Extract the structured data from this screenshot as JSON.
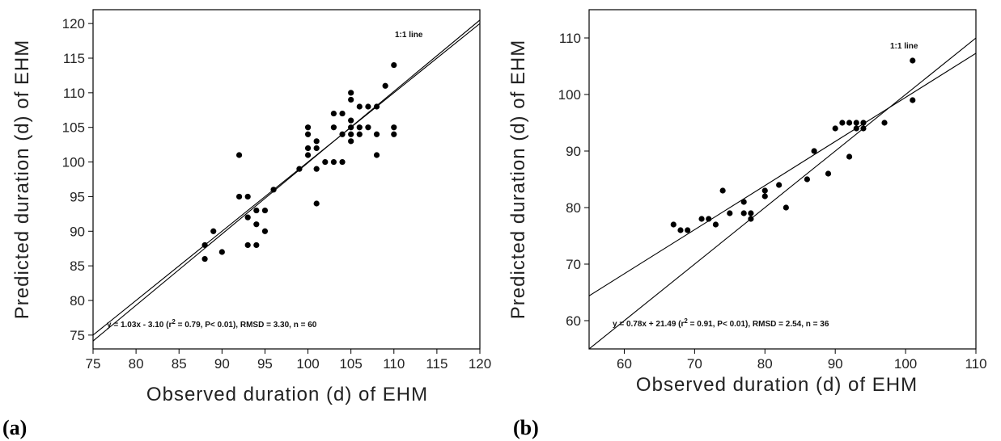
{
  "chart_data": [
    {
      "type": "scatter",
      "panel_label": "(a)",
      "xlabel": "Observed duration (d) of EHM",
      "ylabel": "Predicted duration (d) of EHM",
      "xlim": [
        75,
        120
      ],
      "ylim": [
        73,
        122
      ],
      "xticks": [
        75,
        80,
        85,
        90,
        95,
        100,
        105,
        110,
        115,
        120
      ],
      "yticks": [
        75,
        80,
        85,
        90,
        95,
        100,
        105,
        110,
        115,
        120
      ],
      "equation_text": "y = 1.03x - 3.10 (r",
      "equation_sup": "2",
      "equation_rest": " = 0.79, P< 0.01), RMSD = 3.30, n = 60",
      "one_to_one_label": "1:1 line",
      "lines": [
        {
          "kind": "fit",
          "slope": 1.03,
          "intercept": -3.1
        },
        {
          "kind": "one_to_one",
          "slope": 1,
          "intercept": 0
        }
      ],
      "points": [
        {
          "x": 88,
          "y": 88
        },
        {
          "x": 88,
          "y": 86
        },
        {
          "x": 89,
          "y": 90
        },
        {
          "x": 90,
          "y": 87
        },
        {
          "x": 92,
          "y": 101
        },
        {
          "x": 92,
          "y": 95
        },
        {
          "x": 93,
          "y": 95
        },
        {
          "x": 93,
          "y": 92
        },
        {
          "x": 93,
          "y": 88
        },
        {
          "x": 94,
          "y": 88
        },
        {
          "x": 94,
          "y": 93
        },
        {
          "x": 94,
          "y": 91
        },
        {
          "x": 95,
          "y": 93
        },
        {
          "x": 95,
          "y": 90
        },
        {
          "x": 96,
          "y": 96
        },
        {
          "x": 99,
          "y": 99
        },
        {
          "x": 100,
          "y": 105
        },
        {
          "x": 100,
          "y": 104
        },
        {
          "x": 100,
          "y": 102
        },
        {
          "x": 100,
          "y": 101
        },
        {
          "x": 101,
          "y": 103
        },
        {
          "x": 101,
          "y": 102
        },
        {
          "x": 101,
          "y": 99
        },
        {
          "x": 101,
          "y": 94
        },
        {
          "x": 102,
          "y": 100
        },
        {
          "x": 103,
          "y": 107
        },
        {
          "x": 103,
          "y": 105
        },
        {
          "x": 103,
          "y": 100
        },
        {
          "x": 104,
          "y": 107
        },
        {
          "x": 104,
          "y": 104
        },
        {
          "x": 104,
          "y": 100
        },
        {
          "x": 105,
          "y": 110
        },
        {
          "x": 105,
          "y": 109
        },
        {
          "x": 105,
          "y": 106
        },
        {
          "x": 105,
          "y": 105
        },
        {
          "x": 105,
          "y": 104
        },
        {
          "x": 105,
          "y": 103
        },
        {
          "x": 106,
          "y": 108
        },
        {
          "x": 106,
          "y": 105
        },
        {
          "x": 106,
          "y": 104
        },
        {
          "x": 107,
          "y": 108
        },
        {
          "x": 107,
          "y": 105
        },
        {
          "x": 108,
          "y": 108
        },
        {
          "x": 108,
          "y": 104
        },
        {
          "x": 108,
          "y": 101
        },
        {
          "x": 109,
          "y": 111
        },
        {
          "x": 110,
          "y": 114
        },
        {
          "x": 110,
          "y": 105
        },
        {
          "x": 110,
          "y": 104
        }
      ]
    },
    {
      "type": "scatter",
      "panel_label": "(b)",
      "xlabel": "Observed duration (d) of EHM",
      "ylabel": "Predicted duration (d) of EHM",
      "xlim": [
        55,
        110
      ],
      "ylim": [
        55,
        115
      ],
      "xticks": [
        60,
        70,
        80,
        90,
        100,
        110
      ],
      "yticks": [
        60,
        70,
        80,
        90,
        100,
        110
      ],
      "equation_text": "y = 0.78x + 21.49 (r",
      "equation_sup": "2",
      "equation_rest": " = 0.91, P< 0.01), RMSD = 2.54, n = 36",
      "one_to_one_label": "1:1 line",
      "lines": [
        {
          "kind": "fit",
          "slope": 0.78,
          "intercept": 21.49
        },
        {
          "kind": "one_to_one",
          "slope": 1,
          "intercept": 0
        }
      ],
      "points": [
        {
          "x": 67,
          "y": 77
        },
        {
          "x": 68,
          "y": 76
        },
        {
          "x": 69,
          "y": 76
        },
        {
          "x": 71,
          "y": 78
        },
        {
          "x": 72,
          "y": 78
        },
        {
          "x": 73,
          "y": 77
        },
        {
          "x": 74,
          "y": 83
        },
        {
          "x": 75,
          "y": 79
        },
        {
          "x": 77,
          "y": 81
        },
        {
          "x": 77,
          "y": 79
        },
        {
          "x": 78,
          "y": 79
        },
        {
          "x": 78,
          "y": 78
        },
        {
          "x": 80,
          "y": 83
        },
        {
          "x": 80,
          "y": 82
        },
        {
          "x": 82,
          "y": 84
        },
        {
          "x": 83,
          "y": 80
        },
        {
          "x": 86,
          "y": 85
        },
        {
          "x": 87,
          "y": 90
        },
        {
          "x": 89,
          "y": 86
        },
        {
          "x": 90,
          "y": 94
        },
        {
          "x": 91,
          "y": 95
        },
        {
          "x": 92,
          "y": 95
        },
        {
          "x": 92,
          "y": 89
        },
        {
          "x": 93,
          "y": 95
        },
        {
          "x": 93,
          "y": 94
        },
        {
          "x": 94,
          "y": 95
        },
        {
          "x": 94,
          "y": 94
        },
        {
          "x": 97,
          "y": 95
        },
        {
          "x": 101,
          "y": 106
        },
        {
          "x": 101,
          "y": 99
        }
      ]
    }
  ]
}
